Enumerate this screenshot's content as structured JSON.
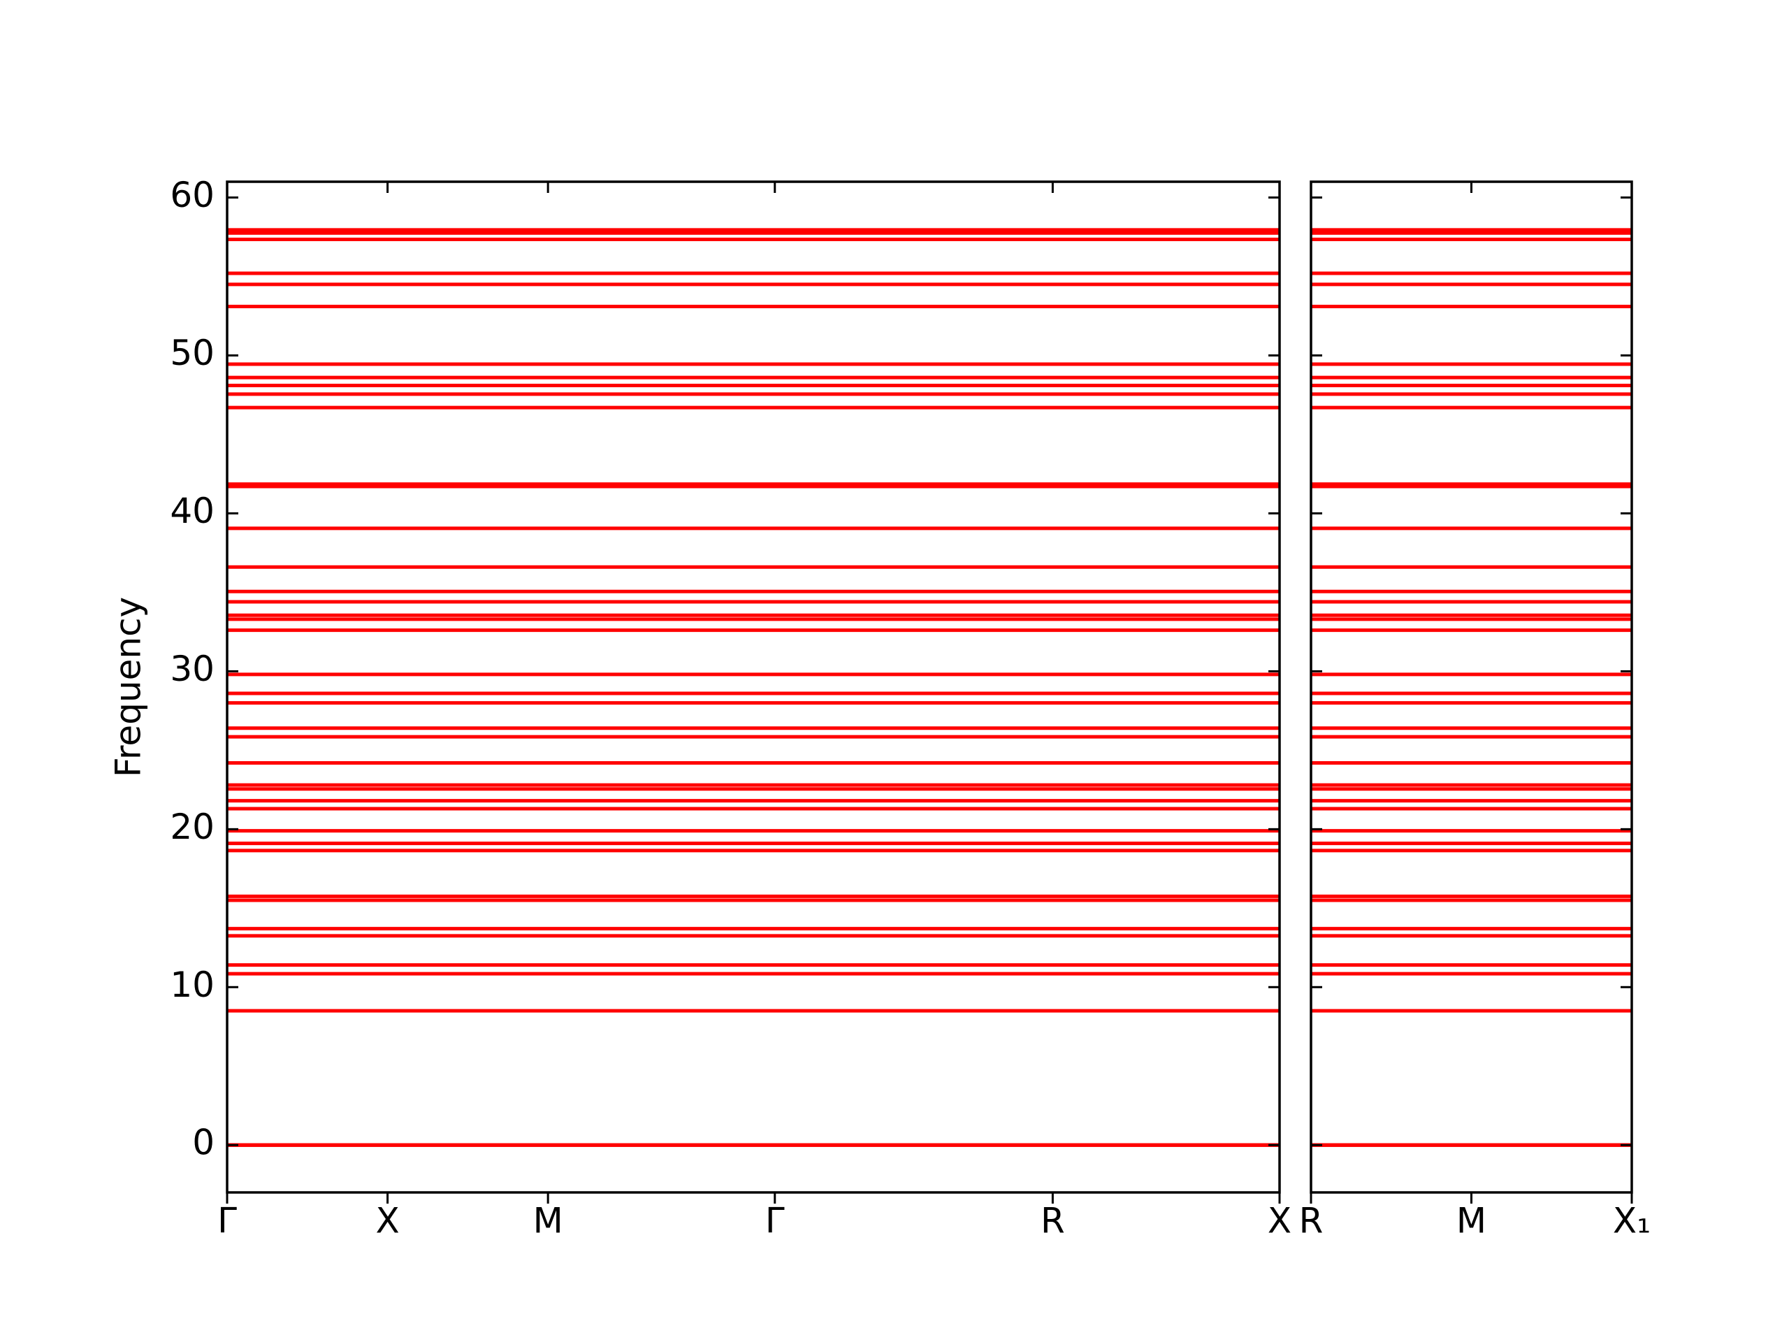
{
  "chart_data": [
    {
      "type": "line",
      "ylabel": "Frequency",
      "color": "#ff0000",
      "ylim": [
        -3,
        61
      ],
      "yticks": [
        0,
        10,
        20,
        30,
        40,
        50,
        60
      ],
      "xlim": [
        0,
        6.56
      ],
      "xticks": [
        {
          "value": 0,
          "label": "Γ"
        },
        {
          "value": 1,
          "label": "X"
        },
        {
          "value": 2,
          "label": "M"
        },
        {
          "value": 3.414,
          "label": "Γ"
        },
        {
          "value": 5.146,
          "label": "R"
        },
        {
          "value": 6.56,
          "label": "X"
        }
      ],
      "x": [
        0,
        6.56
      ],
      "series": [
        {
          "values": [
            57.95,
            57.95
          ]
        },
        {
          "values": [
            57.75,
            57.75
          ]
        },
        {
          "values": [
            57.35,
            57.35
          ]
        },
        {
          "values": [
            55.2,
            55.2
          ]
        },
        {
          "values": [
            54.5,
            54.5
          ]
        },
        {
          "values": [
            53.1,
            53.1
          ]
        },
        {
          "values": [
            49.45,
            49.45
          ]
        },
        {
          "values": [
            48.6,
            48.6
          ]
        },
        {
          "values": [
            48.1,
            48.1
          ]
        },
        {
          "values": [
            47.55,
            47.55
          ]
        },
        {
          "values": [
            46.7,
            46.7
          ]
        },
        {
          "values": [
            41.85,
            41.85
          ]
        },
        {
          "values": [
            41.7,
            41.7
          ]
        },
        {
          "values": [
            39.05,
            39.05
          ]
        },
        {
          "values": [
            36.6,
            36.6
          ]
        },
        {
          "values": [
            35.05,
            35.05
          ]
        },
        {
          "values": [
            34.4,
            34.4
          ]
        },
        {
          "values": [
            33.55,
            33.55
          ]
        },
        {
          "values": [
            33.3,
            33.3
          ]
        },
        {
          "values": [
            32.6,
            32.6
          ]
        },
        {
          "values": [
            29.8,
            29.8
          ]
        },
        {
          "values": [
            28.6,
            28.6
          ]
        },
        {
          "values": [
            28.0,
            28.0
          ]
        },
        {
          "values": [
            26.4,
            26.4
          ]
        },
        {
          "values": [
            25.85,
            25.85
          ]
        },
        {
          "values": [
            24.2,
            24.2
          ]
        },
        {
          "values": [
            22.8,
            22.8
          ]
        },
        {
          "values": [
            22.55,
            22.55
          ]
        },
        {
          "values": [
            21.8,
            21.8
          ]
        },
        {
          "values": [
            21.3,
            21.3
          ]
        },
        {
          "values": [
            19.9,
            19.9
          ]
        },
        {
          "values": [
            19.1,
            19.1
          ]
        },
        {
          "values": [
            18.65,
            18.65
          ]
        },
        {
          "values": [
            15.75,
            15.75
          ]
        },
        {
          "values": [
            15.5,
            15.5
          ]
        },
        {
          "values": [
            13.7,
            13.7
          ]
        },
        {
          "values": [
            13.25,
            13.25
          ]
        },
        {
          "values": [
            11.4,
            11.4
          ]
        },
        {
          "values": [
            10.85,
            10.85
          ]
        },
        {
          "values": [
            8.5,
            8.5
          ]
        },
        {
          "values": [
            0,
            0
          ]
        },
        {
          "values": [
            0,
            0
          ]
        },
        {
          "values": [
            0,
            0
          ]
        }
      ]
    },
    {
      "type": "line",
      "color": "#ff0000",
      "ylim": [
        -3,
        61
      ],
      "yticks": [
        0,
        10,
        20,
        30,
        40,
        50,
        60
      ],
      "xlim": [
        0,
        2
      ],
      "xticks": [
        {
          "value": 0,
          "label": "R"
        },
        {
          "value": 1,
          "label": "M"
        },
        {
          "value": 2,
          "label": "X₁"
        }
      ],
      "x": [
        0,
        2
      ],
      "series": [
        {
          "values": [
            57.95,
            57.95
          ]
        },
        {
          "values": [
            57.75,
            57.75
          ]
        },
        {
          "values": [
            57.35,
            57.35
          ]
        },
        {
          "values": [
            55.2,
            55.2
          ]
        },
        {
          "values": [
            54.5,
            54.5
          ]
        },
        {
          "values": [
            53.1,
            53.1
          ]
        },
        {
          "values": [
            49.45,
            49.45
          ]
        },
        {
          "values": [
            48.6,
            48.6
          ]
        },
        {
          "values": [
            48.1,
            48.1
          ]
        },
        {
          "values": [
            47.55,
            47.55
          ]
        },
        {
          "values": [
            46.7,
            46.7
          ]
        },
        {
          "values": [
            41.85,
            41.85
          ]
        },
        {
          "values": [
            41.7,
            41.7
          ]
        },
        {
          "values": [
            39.05,
            39.05
          ]
        },
        {
          "values": [
            36.6,
            36.6
          ]
        },
        {
          "values": [
            35.05,
            35.05
          ]
        },
        {
          "values": [
            34.4,
            34.4
          ]
        },
        {
          "values": [
            33.55,
            33.55
          ]
        },
        {
          "values": [
            33.3,
            33.3
          ]
        },
        {
          "values": [
            32.6,
            32.6
          ]
        },
        {
          "values": [
            29.8,
            29.8
          ]
        },
        {
          "values": [
            28.6,
            28.6
          ]
        },
        {
          "values": [
            28.0,
            28.0
          ]
        },
        {
          "values": [
            26.4,
            26.4
          ]
        },
        {
          "values": [
            25.85,
            25.85
          ]
        },
        {
          "values": [
            24.2,
            24.2
          ]
        },
        {
          "values": [
            22.8,
            22.8
          ]
        },
        {
          "values": [
            22.55,
            22.55
          ]
        },
        {
          "values": [
            21.8,
            21.8
          ]
        },
        {
          "values": [
            21.3,
            21.3
          ]
        },
        {
          "values": [
            19.9,
            19.9
          ]
        },
        {
          "values": [
            19.1,
            19.1
          ]
        },
        {
          "values": [
            18.65,
            18.65
          ]
        },
        {
          "values": [
            15.75,
            15.75
          ]
        },
        {
          "values": [
            15.5,
            15.5
          ]
        },
        {
          "values": [
            13.7,
            13.7
          ]
        },
        {
          "values": [
            13.25,
            13.25
          ]
        },
        {
          "values": [
            11.4,
            11.4
          ]
        },
        {
          "values": [
            10.85,
            10.85
          ]
        },
        {
          "values": [
            8.5,
            8.5
          ]
        },
        {
          "values": [
            0,
            0
          ]
        },
        {
          "values": [
            0,
            0
          ]
        },
        {
          "values": [
            0,
            0
          ]
        }
      ]
    }
  ]
}
